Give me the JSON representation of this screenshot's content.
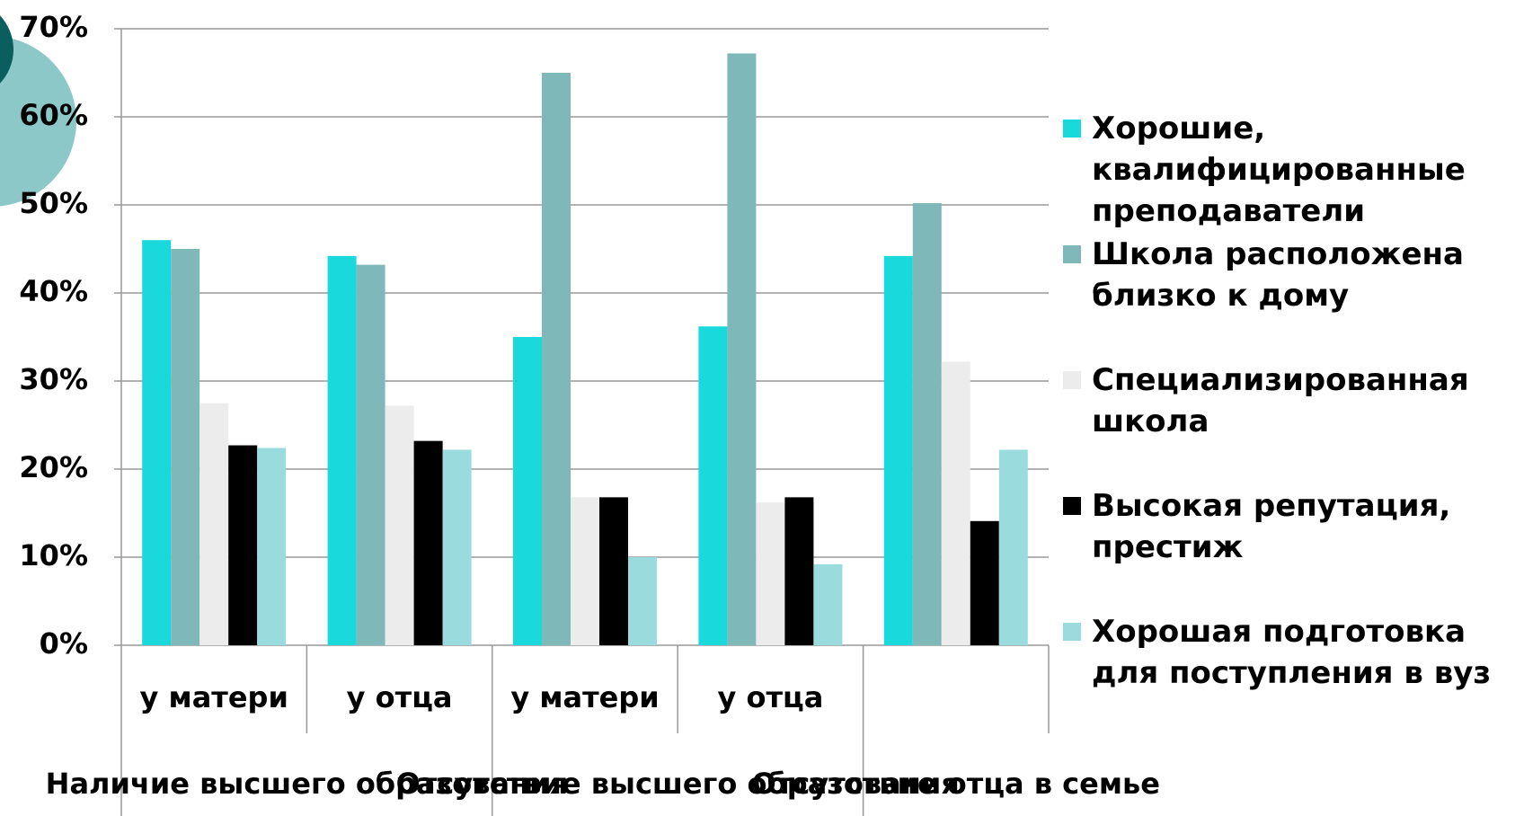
{
  "chart_data": {
    "type": "bar",
    "categories": [
      "у матери",
      "у отца",
      "у матери",
      "у отца",
      null
    ],
    "groups": [
      "Наличие высшего образования",
      "Отсутствие высшего образования",
      "Отсутствие отца в семье"
    ],
    "series": [
      {
        "name": "Хорошие, квалифицированные преподаватели",
        "color": "#19d9dc",
        "values": [
          46,
          44.2,
          35,
          36.2,
          44.2
        ]
      },
      {
        "name": "Школа расположена близко к дому",
        "color": "#7fb8b8",
        "values": [
          45,
          43.2,
          65,
          67.2,
          50.2
        ]
      },
      {
        "name": "Специализированная школа",
        "color": "#ececec",
        "values": [
          27.5,
          27.2,
          16.8,
          16.2,
          32.2
        ]
      },
      {
        "name": "Высокая репутация, престиж",
        "color": "#000000",
        "values": [
          22.7,
          23.2,
          16.8,
          16.8,
          14.1
        ]
      },
      {
        "name": "Хорошая подготовка для поступления в вуз",
        "color": "#9adcdd",
        "values": [
          22.4,
          22.2,
          10,
          9.2,
          22.2
        ]
      }
    ],
    "ylim": [
      0,
      70
    ],
    "yticks": [
      {
        "value": 0,
        "label": "0%"
      },
      {
        "value": 10,
        "label": "10%"
      },
      {
        "value": 20,
        "label": "20%"
      },
      {
        "value": 30,
        "label": "30%"
      },
      {
        "value": 40,
        "label": "40%"
      },
      {
        "value": 50,
        "label": "50%"
      },
      {
        "value": 60,
        "label": "60%"
      },
      {
        "value": 70,
        "label": "70%"
      }
    ],
    "grid": true,
    "legend": "right"
  }
}
